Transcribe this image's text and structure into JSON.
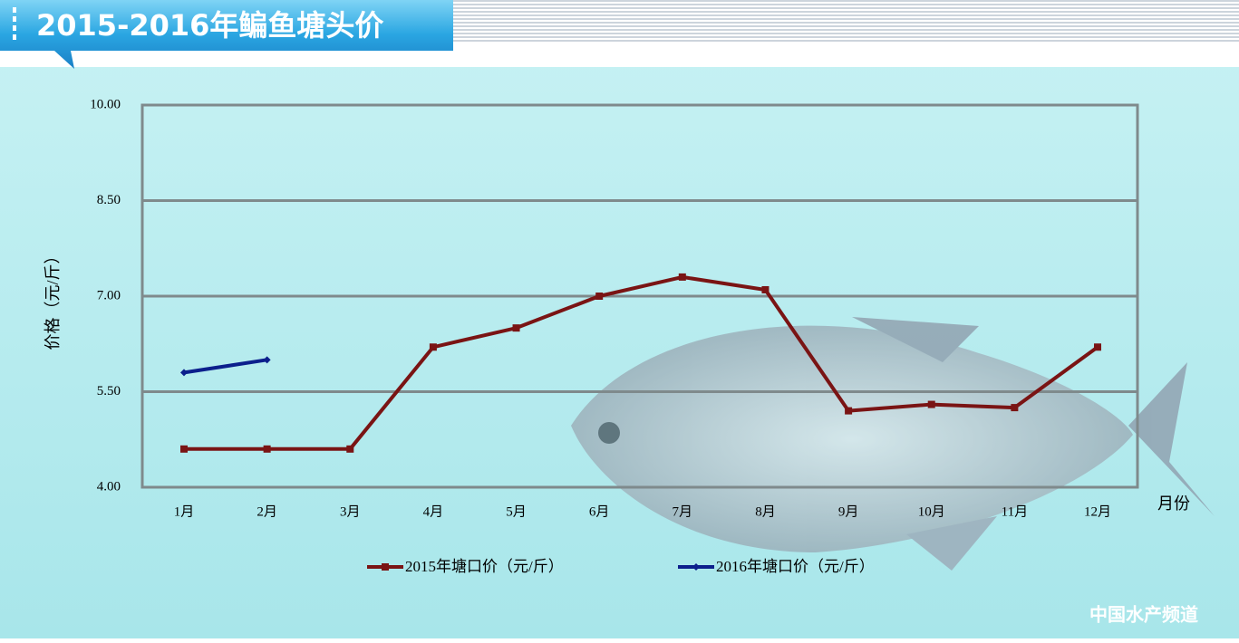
{
  "chart_data": {
    "type": "line",
    "title": "2015-2016年鳊鱼塘头价",
    "y_label": "价格（元/斤）",
    "x_label": "月份",
    "watermark": "中国水产频道",
    "categories": [
      "1月",
      "2月",
      "3月",
      "4月",
      "5月",
      "6月",
      "7月",
      "8月",
      "9月",
      "10月",
      "11月",
      "12月"
    ],
    "series": [
      {
        "name": "2015年塘口价（元/斤）",
        "color": "#7a1414",
        "marker": "square",
        "values": [
          4.6,
          4.6,
          4.6,
          6.2,
          6.5,
          7.0,
          7.3,
          7.1,
          5.2,
          5.3,
          5.25,
          6.2
        ]
      },
      {
        "name": "2016年塘口价（元/斤）",
        "color": "#0c1f8c",
        "marker": "diamond",
        "values": [
          5.8,
          6.0,
          null,
          null,
          null,
          null,
          null,
          null,
          null,
          null,
          null,
          null
        ]
      }
    ],
    "ylim": [
      4,
      10
    ],
    "yticks": [
      {
        "value": 4,
        "label": "4.00"
      },
      {
        "value": 5.5,
        "label": "5.50"
      },
      {
        "value": 7,
        "label": "7.00"
      },
      {
        "value": 8.5,
        "label": "8.50"
      },
      {
        "value": 10,
        "label": "10.00"
      }
    ],
    "grid": true
  }
}
